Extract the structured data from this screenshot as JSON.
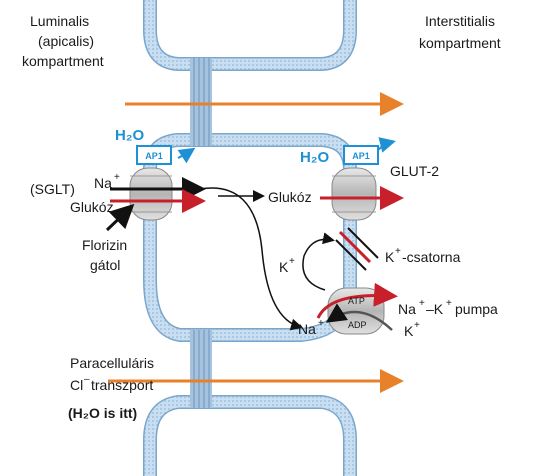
{
  "labels": {
    "luminal_1": "Luminalis",
    "luminal_2": "(apicalis)",
    "luminal_3": "kompartment",
    "interstitial_1": "Interstitialis",
    "interstitial_2": "kompartment",
    "h2o_left": "H₂O",
    "h2o_right": "H₂O",
    "ap1_left": "AP1",
    "ap1_right": "AP1",
    "glut2": "GLUT-2",
    "sglt": "(SGLT)",
    "na_left": "Na",
    "na_left_sup": "+",
    "glucose_left": "Glukóz",
    "glucose_mid": "Glukóz",
    "florizin_1": "Florizin",
    "florizin_2": "gátol",
    "k_left": "K",
    "k_left_sup": "+",
    "k_channel": "K",
    "k_channel_sup": "+",
    "k_channel_rest": "-csatorna",
    "pump_na": "Na",
    "pump_na_sup": "+",
    "pump_k": "–K",
    "pump_k_sup": "+",
    "pump_rest": "pumpa",
    "k_below": "K",
    "k_below_sup": "+",
    "na_bottom": "Na",
    "na_bottom_sup": "+",
    "atp": "ATP",
    "adp": "ADP",
    "paracell_1": "Paracelluláris",
    "paracell_2": "Cl",
    "paracell_2_sup": "–",
    "paracell_2_rest": "transzport",
    "h2o_note": "(H₂O is itt)"
  },
  "colors": {
    "membrane": "#b8d3ea",
    "membrane_edge": "#7aa6cc",
    "orange_arrow": "#e8822a",
    "red_arrow": "#c8202a",
    "blue_accent": "#1e90d6",
    "carrier": "#c9c9c9"
  }
}
